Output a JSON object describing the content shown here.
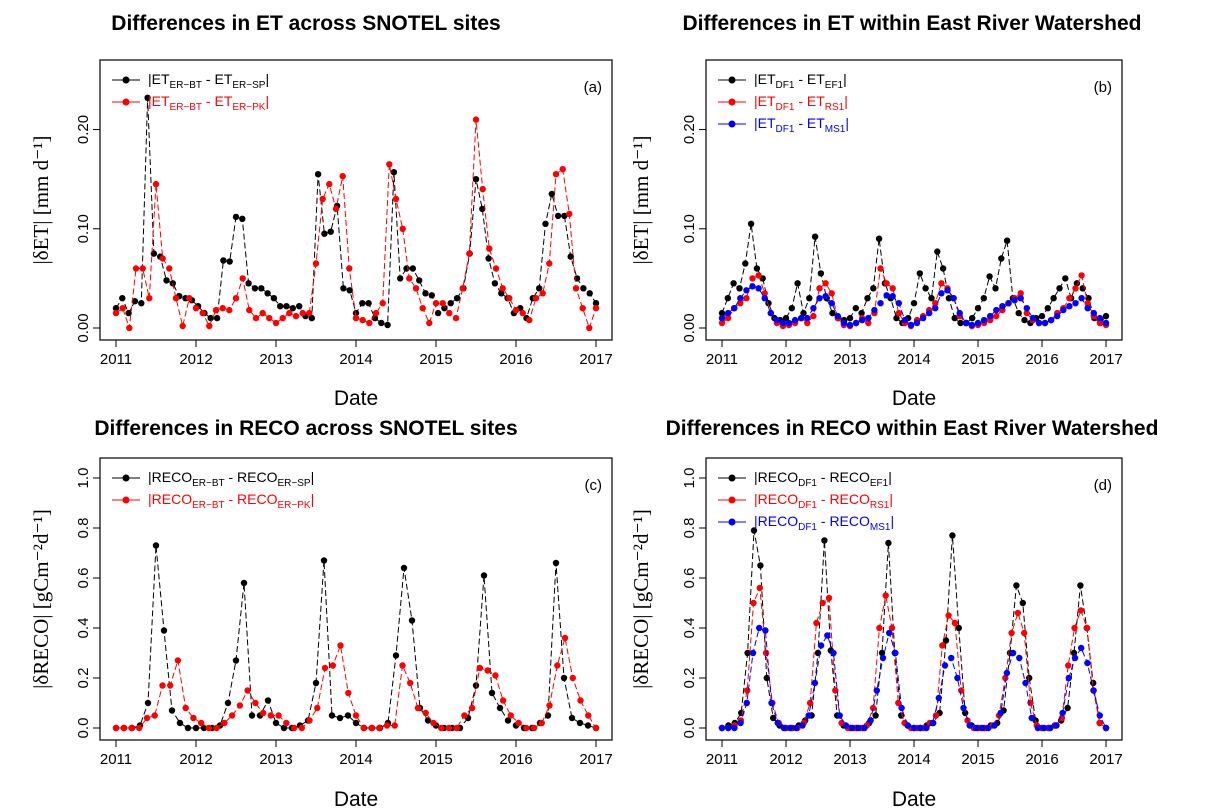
{
  "chart_data": [
    {
      "id": "a",
      "type": "line",
      "title": "Differences in ET across SNOTEL sites",
      "xlabel": "Date",
      "ylabel": "|δET|  [mm d⁻¹]",
      "panel_label": "(a)",
      "xlim": [
        2011,
        2017
      ],
      "ylim": [
        0,
        0.25
      ],
      "x_ticks": [
        2011,
        2012,
        2013,
        2014,
        2015,
        2016,
        2017
      ],
      "y_ticks": [
        0.0,
        0.1,
        0.2
      ],
      "y_tick_labels": [
        "0.00",
        "0.10",
        "0.20"
      ],
      "legend_position": "top-left",
      "series": [
        {
          "legend": {
            "base": "|ET",
            "s1": "ER−BT",
            "mid": " - ET",
            "s2": "ER−SP",
            "end": "|"
          },
          "color": "#000000",
          "values": [
            0.02,
            0.03,
            0.015,
            0.027,
            0.025,
            0.232,
            0.075,
            0.072,
            0.048,
            0.045,
            0.032,
            0.03,
            0.028,
            0.022,
            0.015,
            0.01,
            0.01,
            0.068,
            0.067,
            0.112,
            0.11,
            0.045,
            0.04,
            0.04,
            0.035,
            0.03,
            0.022,
            0.022,
            0.02,
            0.022,
            0.012,
            0.01,
            0.155,
            0.095,
            0.097,
            0.123,
            0.04,
            0.038,
            0.015,
            0.025,
            0.025,
            0.01,
            0.005,
            0.003,
            0.157,
            0.05,
            0.06,
            0.06,
            0.048,
            0.035,
            0.033,
            0.015,
            0.02,
            0.025,
            0.03,
            0.04,
            0.075,
            0.15,
            0.12,
            0.07,
            0.045,
            0.035,
            0.03,
            0.015,
            0.02,
            0.01,
            0.03,
            0.04,
            0.105,
            0.135,
            0.113,
            0.113,
            0.072,
            0.05,
            0.04,
            0.035,
            0.025
          ]
        },
        {
          "legend": {
            "base": "|ET",
            "s1": "ER−BT",
            "mid": " - ET",
            "s2": "ER−PK",
            "end": "|"
          },
          "color": "#ff0000",
          "values": [
            0.015,
            0.02,
            0.0,
            0.06,
            0.06,
            0.03,
            0.145,
            0.07,
            0.06,
            0.03,
            0.002,
            0.03,
            0.02,
            0.015,
            0.002,
            0.018,
            0.02,
            0.018,
            0.03,
            0.05,
            0.018,
            0.01,
            0.015,
            0.01,
            0.005,
            0.01,
            0.015,
            0.012,
            0.015,
            0.015,
            0.065,
            0.13,
            0.145,
            0.12,
            0.153,
            0.06,
            0.01,
            0.008,
            0.005,
            0.015,
            0.025,
            0.165,
            0.13,
            0.1,
            0.05,
            0.04,
            0.02,
            0.005,
            0.025,
            0.025,
            0.015,
            0.01,
            0.04,
            0.075,
            0.21,
            0.14,
            0.08,
            0.06,
            0.04,
            0.03,
            0.018,
            0.015,
            0.008,
            0.03,
            0.035,
            0.065,
            0.155,
            0.16,
            0.115,
            0.04,
            0.02,
            0.0,
            0.02
          ]
        }
      ]
    },
    {
      "id": "b",
      "type": "line",
      "title": "Differences in ET within East River Watershed",
      "xlabel": "Date",
      "ylabel": "|δET|  [mm d⁻¹]",
      "panel_label": "(b)",
      "xlim": [
        2011,
        2017
      ],
      "ylim": [
        0,
        0.25
      ],
      "x_ticks": [
        2011,
        2012,
        2013,
        2014,
        2015,
        2016,
        2017
      ],
      "y_ticks": [
        0.0,
        0.1,
        0.2
      ],
      "y_tick_labels": [
        "0.00",
        "0.10",
        "0.20"
      ],
      "legend_position": "top-left",
      "series": [
        {
          "legend": {
            "base": "|ET",
            "s1": "DF1",
            "mid": " - ET",
            "s2": "EF1",
            "end": "|"
          },
          "color": "#000000",
          "values": [
            0.015,
            0.03,
            0.045,
            0.04,
            0.065,
            0.105,
            0.06,
            0.05,
            0.025,
            0.01,
            0.008,
            0.01,
            0.02,
            0.045,
            0.015,
            0.03,
            0.092,
            0.055,
            0.03,
            0.015,
            0.01,
            0.008,
            0.01,
            0.02,
            0.015,
            0.03,
            0.04,
            0.09,
            0.045,
            0.03,
            0.01,
            0.005,
            0.01,
            0.025,
            0.055,
            0.04,
            0.03,
            0.077,
            0.06,
            0.03,
            0.01,
            0.005,
            0.005,
            0.01,
            0.02,
            0.03,
            0.052,
            0.04,
            0.07,
            0.088,
            0.03,
            0.015,
            0.008,
            0.005,
            0.01,
            0.012,
            0.02,
            0.03,
            0.04,
            0.05,
            0.03,
            0.045,
            0.04,
            0.03,
            0.01,
            0.005,
            0.012
          ]
        },
        {
          "legend": {
            "base": "|ET",
            "s1": "DF1",
            "mid": " - ET",
            "s2": "RS1",
            "end": "|"
          },
          "color": "#ff0000",
          "values": [
            0.005,
            0.01,
            0.02,
            0.025,
            0.03,
            0.05,
            0.053,
            0.035,
            0.015,
            0.005,
            0.002,
            0.003,
            0.005,
            0.01,
            0.005,
            0.012,
            0.04,
            0.045,
            0.035,
            0.01,
            0.003,
            0.002,
            0.005,
            0.01,
            0.005,
            0.015,
            0.06,
            0.045,
            0.04,
            0.015,
            0.005,
            0.002,
            0.008,
            0.012,
            0.018,
            0.025,
            0.045,
            0.04,
            0.03,
            0.012,
            0.005,
            0.002,
            0.003,
            0.005,
            0.008,
            0.012,
            0.018,
            0.025,
            0.03,
            0.035,
            0.015,
            0.008,
            0.005,
            0.005,
            0.008,
            0.015,
            0.02,
            0.03,
            0.04,
            0.053,
            0.025,
            0.012,
            0.005,
            0.003
          ]
        },
        {
          "legend": {
            "base": "|ET",
            "s1": "DF1",
            "mid": " - ET",
            "s2": "MS1",
            "end": "|"
          },
          "color": "#0000ff",
          "values": [
            0.01,
            0.015,
            0.02,
            0.03,
            0.038,
            0.042,
            0.04,
            0.03,
            0.015,
            0.008,
            0.005,
            0.005,
            0.008,
            0.01,
            0.01,
            0.02,
            0.03,
            0.032,
            0.025,
            0.012,
            0.005,
            0.003,
            0.005,
            0.008,
            0.01,
            0.018,
            0.025,
            0.033,
            0.032,
            0.025,
            0.008,
            0.003,
            0.005,
            0.01,
            0.015,
            0.02,
            0.035,
            0.038,
            0.03,
            0.015,
            0.005,
            0.003,
            0.005,
            0.008,
            0.012,
            0.018,
            0.022,
            0.025,
            0.028,
            0.03,
            0.02,
            0.01,
            0.005,
            0.005,
            0.008,
            0.012,
            0.018,
            0.022,
            0.025,
            0.03,
            0.02,
            0.015,
            0.01,
            0.005
          ]
        }
      ]
    },
    {
      "id": "c",
      "type": "line",
      "title": "Differences in RECO across SNOTEL sites",
      "xlabel": "Date",
      "ylabel": "|δRECO| [gCm⁻²d⁻¹]",
      "panel_label": "(c)",
      "xlim": [
        2011,
        2017
      ],
      "ylim": [
        0,
        1.0
      ],
      "x_ticks": [
        2011,
        2012,
        2013,
        2014,
        2015,
        2016,
        2017
      ],
      "y_ticks": [
        0.0,
        0.2,
        0.4,
        0.6,
        0.8,
        1.0
      ],
      "y_tick_labels": [
        "0.0",
        "0.2",
        "0.4",
        "0.6",
        "0.8",
        "1.0"
      ],
      "legend_position": "top-left",
      "series": [
        {
          "legend": {
            "base": "|RECO",
            "s1": "ER−BT",
            "mid": " - RECO",
            "s2": "ER−SP",
            "end": "|"
          },
          "color": "#000000",
          "values": [
            0.0,
            0.0,
            0.0,
            0.01,
            0.1,
            0.73,
            0.39,
            0.07,
            0.02,
            0.0,
            0.0,
            0.0,
            0.0,
            0.01,
            0.1,
            0.27,
            0.58,
            0.05,
            0.05,
            0.11,
            0.02,
            0.0,
            0.0,
            0.01,
            0.03,
            0.18,
            0.67,
            0.05,
            0.04,
            0.05,
            0.02,
            0.0,
            0.0,
            0.0,
            0.02,
            0.29,
            0.64,
            0.43,
            0.08,
            0.03,
            0.01,
            0.0,
            0.0,
            0.0,
            0.04,
            0.17,
            0.61,
            0.14,
            0.08,
            0.03,
            0.01,
            0.0,
            0.0,
            0.02,
            0.05,
            0.66,
            0.2,
            0.04,
            0.02,
            0.01,
            0.0
          ]
        },
        {
          "legend": {
            "base": "|RECO",
            "s1": "ER−BT",
            "mid": " - RECO",
            "s2": "ER−PK",
            "end": "|"
          },
          "color": "#ff0000",
          "values": [
            0.0,
            0.0,
            0.0,
            0.0,
            0.04,
            0.05,
            0.17,
            0.17,
            0.27,
            0.08,
            0.04,
            0.02,
            0.0,
            0.0,
            0.02,
            0.05,
            0.09,
            0.15,
            0.1,
            0.06,
            0.05,
            0.05,
            0.02,
            0.0,
            0.0,
            0.03,
            0.08,
            0.24,
            0.25,
            0.33,
            0.14,
            0.05,
            0.0,
            0.0,
            0.0,
            0.01,
            0.01,
            0.25,
            0.18,
            0.08,
            0.06,
            0.02,
            0.0,
            0.0,
            0.0,
            0.05,
            0.08,
            0.24,
            0.23,
            0.21,
            0.11,
            0.05,
            0.02,
            0.0,
            0.0,
            0.02,
            0.09,
            0.25,
            0.36,
            0.2,
            0.11,
            0.05,
            0.0
          ]
        }
      ]
    },
    {
      "id": "d",
      "type": "line",
      "title": "Differences in RECO within East River Watershed",
      "xlabel": "Date",
      "ylabel": "|δRECO| [gCm⁻²d⁻¹]",
      "panel_label": "(d)",
      "xlim": [
        2011,
        2017
      ],
      "ylim": [
        0,
        1.0
      ],
      "x_ticks": [
        2011,
        2012,
        2013,
        2014,
        2015,
        2016,
        2017
      ],
      "y_ticks": [
        0.0,
        0.2,
        0.4,
        0.6,
        0.8,
        1.0
      ],
      "y_tick_labels": [
        "0.0",
        "0.2",
        "0.4",
        "0.6",
        "0.8",
        "1.0"
      ],
      "legend_position": "top-left",
      "series": [
        {
          "legend": {
            "base": "|RECO",
            "s1": "DF1",
            "mid": " - RECO",
            "s2": "EF1",
            "end": "|"
          },
          "color": "#000000",
          "values": [
            0.0,
            0.01,
            0.02,
            0.06,
            0.3,
            0.79,
            0.65,
            0.2,
            0.04,
            0.01,
            0.0,
            0.0,
            0.01,
            0.03,
            0.05,
            0.3,
            0.75,
            0.31,
            0.05,
            0.01,
            0.0,
            0.0,
            0.0,
            0.02,
            0.05,
            0.3,
            0.74,
            0.3,
            0.05,
            0.01,
            0.0,
            0.0,
            0.01,
            0.02,
            0.06,
            0.35,
            0.77,
            0.4,
            0.06,
            0.01,
            0.0,
            0.0,
            0.01,
            0.02,
            0.07,
            0.3,
            0.57,
            0.5,
            0.2,
            0.03,
            0.0,
            0.0,
            0.01,
            0.03,
            0.08,
            0.3,
            0.57,
            0.4,
            0.18,
            0.02,
            0.0
          ]
        },
        {
          "legend": {
            "base": "|RECO",
            "s1": "DF1",
            "mid": " - RECO",
            "s2": "RS1",
            "end": "|"
          },
          "color": "#ff0000",
          "values": [
            0.0,
            0.0,
            0.01,
            0.03,
            0.15,
            0.5,
            0.56,
            0.3,
            0.1,
            0.02,
            0.0,
            0.0,
            0.0,
            0.02,
            0.1,
            0.42,
            0.5,
            0.52,
            0.15,
            0.02,
            0.0,
            0.0,
            0.0,
            0.01,
            0.08,
            0.4,
            0.53,
            0.4,
            0.1,
            0.02,
            0.0,
            0.0,
            0.0,
            0.02,
            0.05,
            0.33,
            0.45,
            0.42,
            0.15,
            0.03,
            0.0,
            0.0,
            0.0,
            0.01,
            0.05,
            0.2,
            0.38,
            0.46,
            0.38,
            0.1,
            0.01,
            0.0,
            0.0,
            0.01,
            0.04,
            0.25,
            0.4,
            0.47,
            0.4,
            0.15,
            0.02,
            0.0
          ]
        },
        {
          "legend": {
            "base": "|RECO",
            "s1": "DF1",
            "mid": " - RECO",
            "s2": "MS1",
            "end": "|"
          },
          "color": "#0000ff",
          "values": [
            0.0,
            0.0,
            0.0,
            0.02,
            0.1,
            0.3,
            0.4,
            0.39,
            0.1,
            0.02,
            0.0,
            0.0,
            0.0,
            0.01,
            0.05,
            0.18,
            0.33,
            0.37,
            0.3,
            0.05,
            0.01,
            0.0,
            0.0,
            0.0,
            0.03,
            0.15,
            0.28,
            0.38,
            0.3,
            0.08,
            0.01,
            0.0,
            0.0,
            0.0,
            0.02,
            0.12,
            0.25,
            0.28,
            0.2,
            0.08,
            0.01,
            0.0,
            0.0,
            0.0,
            0.01,
            0.06,
            0.22,
            0.3,
            0.28,
            0.18,
            0.04,
            0.0,
            0.0,
            0.0,
            0.01,
            0.06,
            0.2,
            0.28,
            0.32,
            0.26,
            0.15,
            0.05,
            0.0
          ]
        }
      ]
    }
  ]
}
